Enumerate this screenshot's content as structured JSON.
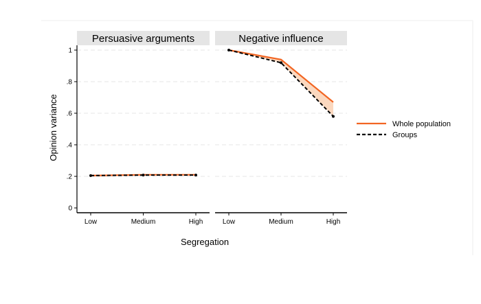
{
  "chart_data": [
    {
      "type": "line",
      "title": "Persuasive arguments",
      "xlabel": "Segregation",
      "ylabel": "Opinion variance",
      "categories": [
        "Low",
        "Medium",
        "High"
      ],
      "ylim": [
        0,
        1
      ],
      "yticks": [
        "0",
        ".2",
        ".4",
        ".6",
        ".8",
        "1"
      ],
      "grid": true,
      "series": [
        {
          "name": "Whole population",
          "values": [
            0.205,
            0.21,
            0.21
          ],
          "color": "#f26522",
          "style": "solid"
        },
        {
          "name": "Groups",
          "values": [
            0.205,
            0.208,
            0.208
          ],
          "color": "#000000",
          "style": "dashed"
        }
      ]
    },
    {
      "type": "line",
      "title": "Negative influence",
      "xlabel": "Segregation",
      "ylabel": "Opinion variance",
      "categories": [
        "Low",
        "Medium",
        "High"
      ],
      "ylim": [
        0,
        1
      ],
      "grid": true,
      "series": [
        {
          "name": "Whole population",
          "values": [
            1.0,
            0.94,
            0.67
          ],
          "color": "#f26522",
          "style": "solid"
        },
        {
          "name": "Groups",
          "values": [
            1.0,
            0.92,
            0.58
          ],
          "color": "#000000",
          "style": "dashed"
        }
      ]
    }
  ],
  "shared": {
    "xlabel": "Segregation",
    "ylabel": "Opinion variance",
    "legend_position": "right",
    "fill_between_color": "#fbd8bf",
    "header_bg": "#e5e5e5"
  },
  "legend": [
    {
      "label": "Whole population",
      "color": "#f26522",
      "style": "solid"
    },
    {
      "label": "Groups",
      "color": "#000000",
      "style": "dashed"
    }
  ]
}
